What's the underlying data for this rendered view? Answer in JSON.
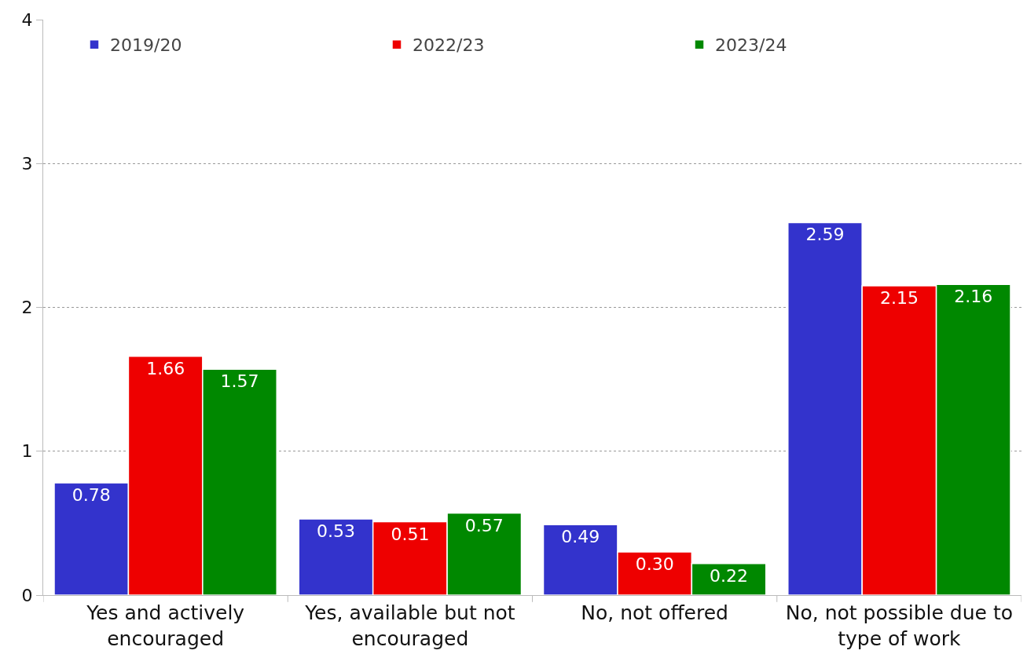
{
  "chart_data": {
    "type": "bar",
    "categories": [
      "Yes and actively encouraged",
      "Yes, available but not encouraged",
      "No, not offered",
      "No, not possible due to type of work"
    ],
    "series": [
      {
        "name": "2019/20",
        "color": "#3333cc",
        "values": [
          0.78,
          0.53,
          0.49,
          2.59
        ]
      },
      {
        "name": "2022/23",
        "color": "#ee0000",
        "values": [
          1.66,
          0.51,
          0.3,
          2.15
        ]
      },
      {
        "name": "2023/24",
        "color": "#008800",
        "values": [
          1.57,
          0.57,
          0.22,
          2.16
        ]
      }
    ],
    "value_labels": [
      [
        "0.78",
        "0.53",
        "0.49",
        "2.59"
      ],
      [
        "1.66",
        "0.51",
        "0.30",
        "2.15"
      ],
      [
        "1.57",
        "0.57",
        "0.22",
        "2.16"
      ]
    ],
    "ylim": [
      0,
      4
    ],
    "yticks": [
      0,
      1,
      2,
      3,
      4
    ],
    "grid": "y",
    "legend": "top"
  }
}
